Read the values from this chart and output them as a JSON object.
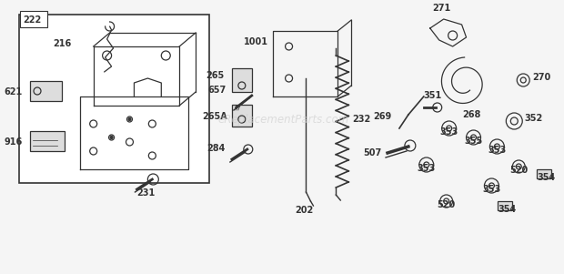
{
  "bg_color": "#f5f5f5",
  "watermark": "eReplacementParts.com",
  "watermark_color": "#cccccc",
  "ec": "#333333",
  "font_size_label": 7,
  "font_size_label_bold": 7
}
